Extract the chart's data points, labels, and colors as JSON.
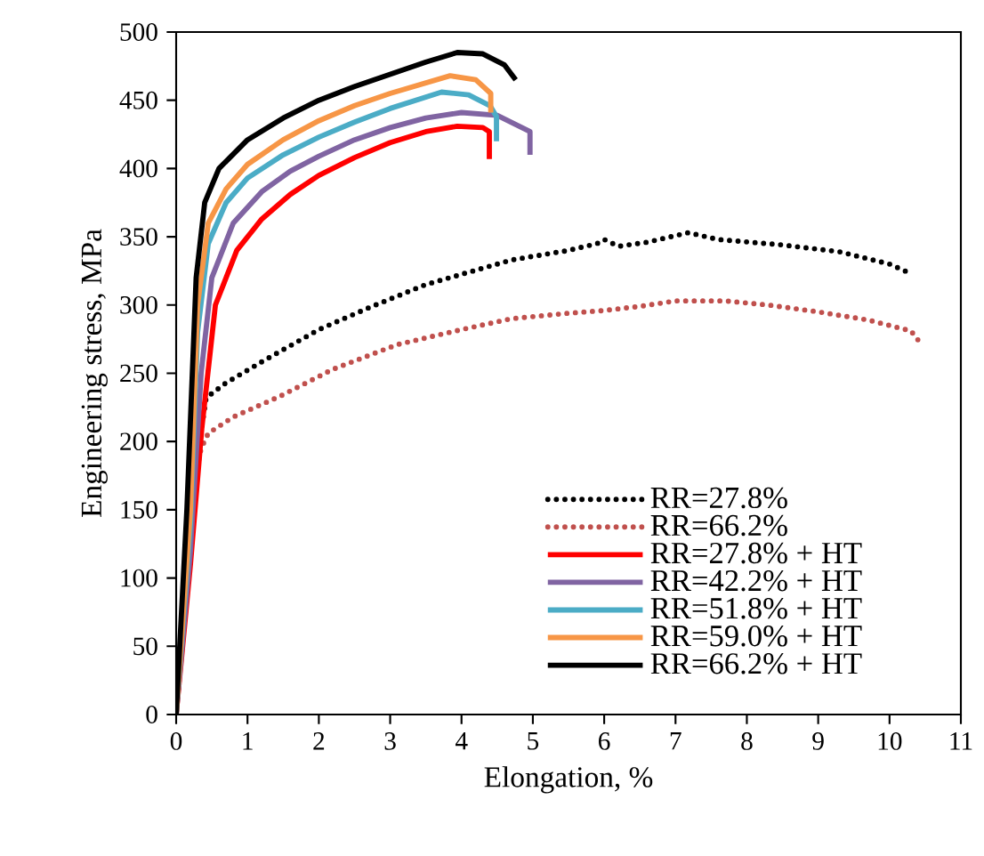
{
  "chart_data": {
    "type": "line",
    "xlabel": "Elongation, %",
    "ylabel": "Engineering stress, MPa",
    "xlim": [
      0,
      11
    ],
    "xticks": [
      0,
      1,
      2,
      3,
      4,
      5,
      6,
      7,
      8,
      9,
      10,
      11
    ],
    "ylim": [
      0,
      500
    ],
    "yticks": [
      0,
      50,
      100,
      150,
      200,
      250,
      300,
      350,
      400,
      450,
      500
    ],
    "grid": false,
    "legend": "bottom right",
    "marker": "none",
    "series": [
      {
        "name": "RR=27.8%",
        "color": "#000000",
        "line_style": "dotted",
        "x": [
          0,
          0.15,
          0.3,
          0.42,
          0.7,
          1.22,
          2,
          2.7,
          3.5,
          4.7,
          5.5,
          5.9,
          6.0,
          6.2,
          6.6,
          7.18,
          7.6,
          8.5,
          9.3,
          10.0,
          10.3
        ],
        "values": [
          0,
          100,
          190,
          232,
          243,
          259,
          282,
          298,
          315,
          333,
          340,
          345,
          348,
          343,
          346,
          353,
          348,
          344,
          339,
          330,
          323
        ]
      },
      {
        "name": "RR=66.2%",
        "color": "#c0504d",
        "line_style": "dotted",
        "x": [
          0,
          0.15,
          0.27,
          0.35,
          0.45,
          0.8,
          1.45,
          2.2,
          3.1,
          4.0,
          4.7,
          5.5,
          6.0,
          6.5,
          7.0,
          7.7,
          8.3,
          9.0,
          9.7,
          10.3,
          10.45
        ],
        "values": [
          0,
          90,
          175,
          195,
          206,
          218,
          233,
          253,
          271,
          282,
          290,
          294,
          296,
          299,
          303,
          303,
          300,
          295,
          289,
          281,
          271
        ]
      },
      {
        "name": "RR=27.8% + HT",
        "color": "#ff0000",
        "line_style": "solid",
        "x": [
          0,
          0.2,
          0.36,
          0.55,
          0.85,
          1.2,
          1.6,
          2.0,
          2.5,
          3.0,
          3.5,
          3.94,
          4.3,
          4.39,
          4.39
        ],
        "values": [
          0,
          110,
          210,
          300,
          340,
          363,
          381,
          395,
          408,
          419,
          427,
          431,
          430,
          427,
          407
        ]
      },
      {
        "name": "RR=42.2% + HT",
        "color": "#8064a2",
        "line_style": "solid",
        "x": [
          0,
          0.2,
          0.35,
          0.5,
          0.8,
          1.2,
          1.6,
          2.0,
          2.5,
          3.0,
          3.5,
          4.0,
          4.5,
          4.96,
          4.96
        ],
        "values": [
          0,
          120,
          250,
          320,
          360,
          383,
          398,
          409,
          421,
          430,
          437,
          441,
          439,
          427,
          410
        ]
      },
      {
        "name": "RR=51.8% + HT",
        "color": "#4bacc6",
        "line_style": "solid",
        "x": [
          0,
          0.2,
          0.3,
          0.45,
          0.7,
          1.0,
          1.5,
          2.0,
          2.5,
          3.0,
          3.72,
          4.1,
          4.4,
          4.49,
          4.49
        ],
        "values": [
          0,
          140,
          280,
          345,
          375,
          393,
          410,
          423,
          434,
          444,
          456,
          454,
          446,
          438,
          420
        ]
      },
      {
        "name": "RR=59.0% + HT",
        "color": "#f79646",
        "line_style": "solid",
        "x": [
          0,
          0.2,
          0.3,
          0.45,
          0.7,
          1.0,
          1.5,
          2.0,
          2.5,
          3.0,
          3.84,
          4.2,
          4.41,
          4.41
        ],
        "values": [
          0,
          150,
          300,
          360,
          385,
          403,
          421,
          435,
          446,
          455,
          468,
          465,
          455,
          441
        ]
      },
      {
        "name": "RR=66.2% + HT",
        "color": "#000000",
        "line_style": "solid",
        "x": [
          0,
          0.15,
          0.28,
          0.4,
          0.6,
          1.0,
          1.5,
          2.0,
          2.5,
          3.0,
          3.5,
          3.94,
          4.3,
          4.6,
          4.76
        ],
        "values": [
          0,
          150,
          320,
          375,
          400,
          421,
          437,
          450,
          460,
          469,
          478,
          485,
          484,
          476,
          465
        ]
      }
    ]
  }
}
